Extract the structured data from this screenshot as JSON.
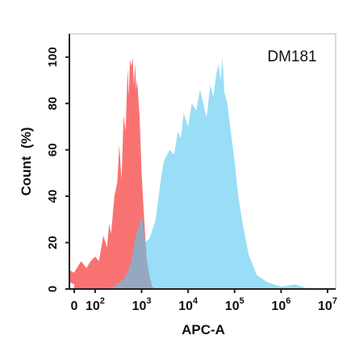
{
  "chart_data": {
    "type": "area",
    "title": "",
    "annotation": "DM181",
    "xlabel": "APC-A",
    "ylabel": "Count  (%)",
    "x_scale": "log",
    "xlim": [
      0,
      10000000
    ],
    "ylim": [
      0,
      110
    ],
    "x_ticks": [
      {
        "value": 0,
        "base": "0",
        "exp": ""
      },
      {
        "value": 100,
        "base": "10",
        "exp": "2"
      },
      {
        "value": 1000,
        "base": "10",
        "exp": "3"
      },
      {
        "value": 10000,
        "base": "10",
        "exp": "4"
      },
      {
        "value": 100000,
        "base": "10",
        "exp": "5"
      },
      {
        "value": 1000000,
        "base": "10",
        "exp": "6"
      },
      {
        "value": 10000000,
        "base": "10",
        "exp": "7"
      }
    ],
    "y_ticks": [
      "0",
      "20",
      "40",
      "60",
      "80",
      "100"
    ],
    "series": [
      {
        "color": "#f87272",
        "x": [
          0,
          10,
          20,
          35,
          50,
          65,
          80,
          100,
          120,
          150,
          180,
          200,
          220,
          260,
          300,
          330,
          370,
          410,
          450,
          500,
          530,
          560,
          600,
          640,
          680,
          700,
          730,
          760,
          800,
          850,
          900,
          950,
          1000,
          1100,
          1200,
          1300,
          1500,
          1700,
          2000
        ],
        "y": [
          2,
          7,
          10,
          7,
          12,
          9,
          12,
          14,
          12,
          23,
          18,
          28,
          24,
          40,
          46,
          62,
          47,
          75,
          68,
          95,
          83,
          99,
          96,
          100,
          88,
          92,
          97,
          86,
          90,
          82,
          75,
          62,
          50,
          35,
          22,
          12,
          5,
          1,
          0
        ]
      },
      {
        "color": "#5bc9f1",
        "x": [
          200,
          300,
          400,
          500,
          600,
          700,
          800,
          900,
          1000,
          1100,
          1200,
          1500,
          2000,
          2500,
          3000,
          4000,
          5000,
          6000,
          7000,
          8000,
          10000,
          12000,
          15000,
          18000,
          20000,
          25000,
          30000,
          35000,
          40000,
          45000,
          50000,
          55000,
          60000,
          70000,
          80000,
          100000,
          120000,
          150000,
          200000,
          300000,
          500000,
          1000000,
          2000000,
          4000000
        ],
        "y": [
          0,
          2,
          4,
          7,
          12,
          20,
          25,
          28,
          32,
          26,
          20,
          22,
          30,
          45,
          55,
          60,
          58,
          68,
          65,
          76,
          70,
          80,
          77,
          86,
          82,
          74,
          88,
          83,
          92,
          97,
          90,
          100,
          85,
          80,
          70,
          55,
          40,
          28,
          15,
          6,
          3,
          1,
          2,
          0
        ]
      }
    ],
    "overlap_color": "#a05878",
    "grid": false,
    "legend": "none"
  }
}
